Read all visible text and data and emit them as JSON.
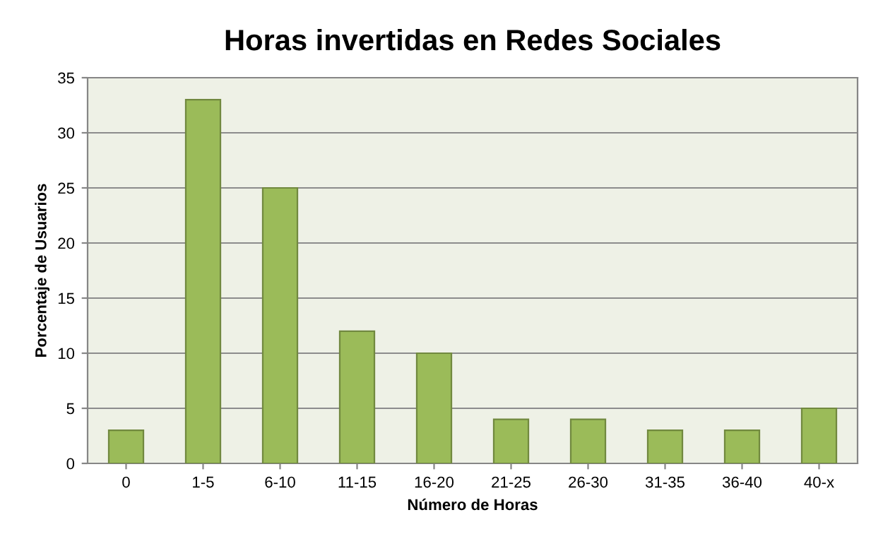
{
  "chart_data": {
    "type": "bar",
    "title": "Horas invertidas en Redes Sociales",
    "xlabel": "Número de Horas",
    "ylabel": "Porcentaje de Usuarios",
    "categories": [
      "0",
      "1-5",
      "6-10",
      "11-15",
      "16-20",
      "21-25",
      "26-30",
      "31-35",
      "36-40",
      "40-x"
    ],
    "values": [
      3,
      33,
      25,
      12,
      10,
      4,
      4,
      3,
      3,
      5
    ],
    "color": "#9bbb59",
    "ylim": [
      0,
      35
    ],
    "yticks": [
      0,
      5,
      10,
      15,
      20,
      25,
      30,
      35
    ],
    "grid": "y"
  }
}
